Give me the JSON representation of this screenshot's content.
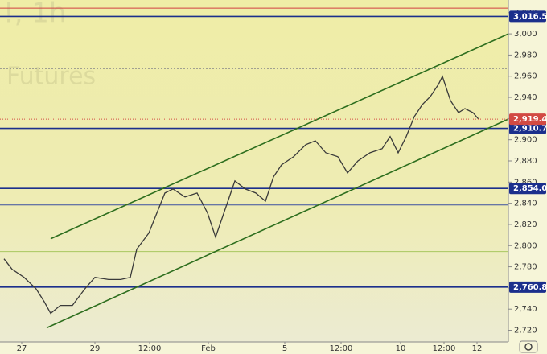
{
  "chart_data": {
    "type": "line",
    "watermark": [
      "!, 1h",
      "Futures"
    ],
    "xlim": [
      0,
      632
    ],
    "ylim": [
      2709,
      3032
    ],
    "xticks": [
      {
        "value": 27,
        "label": "27"
      },
      {
        "value": 118,
        "label": "29"
      },
      {
        "value": 186,
        "label": "12:00"
      },
      {
        "value": 259,
        "label": "Feb"
      },
      {
        "value": 354,
        "label": "5"
      },
      {
        "value": 424,
        "label": "12:00"
      },
      {
        "value": 498,
        "label": "10"
      },
      {
        "value": 552,
        "label": "12:00"
      },
      {
        "value": 593,
        "label": "12"
      }
    ],
    "yticks": [
      {
        "value": 2720,
        "label": "2,720"
      },
      {
        "value": 2740,
        "label": "2,740"
      },
      {
        "value": 2760,
        "label": "2,760"
      },
      {
        "value": 2780,
        "label": "2,780"
      },
      {
        "value": 2800,
        "label": "2,800"
      },
      {
        "value": 2820,
        "label": "2,820"
      },
      {
        "value": 2840,
        "label": "2,840"
      },
      {
        "value": 2860,
        "label": "2,860"
      },
      {
        "value": 2880,
        "label": "2,880"
      },
      {
        "value": 2900,
        "label": "2,900"
      },
      {
        "value": 2920,
        "label": "2,920"
      },
      {
        "value": 2940,
        "label": "2,940"
      },
      {
        "value": 2960,
        "label": "2,960"
      },
      {
        "value": 2980,
        "label": "2,980"
      },
      {
        "value": 3000,
        "label": "3,000"
      },
      {
        "value": 3020,
        "label": "3,020"
      }
    ],
    "series": [
      {
        "color": "#3a3a3a",
        "x": [
          5,
          15,
          30,
          45,
          55,
          63,
          75,
          90,
          105,
          118,
          135,
          150,
          162,
          170,
          185,
          195,
          205,
          215,
          230,
          245,
          258,
          268,
          280,
          292,
          305,
          318,
          330,
          340,
          350,
          365,
          380,
          392,
          405,
          420,
          432,
          445,
          460,
          475,
          485,
          495,
          505,
          515,
          525,
          535,
          545,
          550,
          560,
          570,
          578,
          588,
          595
        ],
        "values": [
          2787.5,
          2777.7,
          2770,
          2759,
          2747,
          2736,
          2743.5,
          2743.5,
          2758.7,
          2770,
          2768,
          2768,
          2770,
          2796.6,
          2811.8,
          2830.8,
          2849.7,
          2853.5,
          2846,
          2849.7,
          2830.8,
          2808,
          2834.6,
          2861.1,
          2853.5,
          2849.7,
          2842,
          2865,
          2876.3,
          2884,
          2895.3,
          2899,
          2887.7,
          2884,
          2868.7,
          2880,
          2887.7,
          2891.5,
          2903,
          2887.7,
          2903,
          2921.8,
          2933.2,
          2940.8,
          2952.2,
          2959.8,
          2937,
          2925.6,
          2929.4,
          2925.6,
          2919.4
        ]
      }
    ],
    "trend_lines": [
      {
        "color": "#2d6e1e",
        "x": [
          63,
          632
        ],
        "values": [
          2806.5,
          3000
        ]
      },
      {
        "color": "#2d6e1e",
        "x": [
          58,
          632
        ],
        "values": [
          2722.3,
          2919.5
        ]
      }
    ],
    "levels": [
      {
        "value": 3016.5,
        "label": "3,016.5",
        "color": "#1b2f8c"
      },
      {
        "value": 2910.7,
        "label": "2,910.7",
        "color": "#1b2f8c"
      },
      {
        "value": 2854.0,
        "label": "2,854.0",
        "color": "#1b2f8c"
      },
      {
        "value": 2760.8,
        "label": "2,760.8",
        "color": "#1b2f8c"
      }
    ],
    "thin_levels": [
      {
        "value": 3024.3,
        "color": "#d04040"
      },
      {
        "value": 2967,
        "color": "#a0a090"
      },
      {
        "value": 2838.4,
        "color": "#3a4fa0"
      },
      {
        "value": 2794.4,
        "color": "#a8c860"
      }
    ],
    "last_price": {
      "value": 2919.4,
      "label": "2,919.4",
      "color": "#d24a43"
    }
  }
}
